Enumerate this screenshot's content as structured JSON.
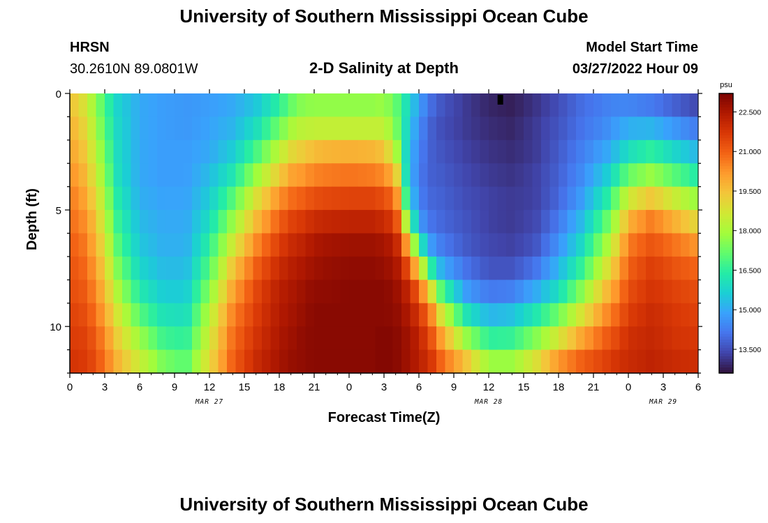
{
  "header": {
    "title": "University of Southern Mississippi Ocean Cube",
    "station": "HRSN",
    "coordinates": "30.2610N  89.0801W",
    "plot_title": "2-D Salinity at Depth",
    "model_start_label": "Model Start Time",
    "model_start_value": "03/27/2022 Hour 09"
  },
  "footer": {
    "title": "University of Southern Mississippi Ocean Cube"
  },
  "chart_data": {
    "type": "heatmap",
    "title": "2-D Salinity at Depth",
    "xlabel": "Forecast Time(Z)",
    "ylabel": "Depth (ft)",
    "x_hours_range": [
      0,
      54
    ],
    "x_tick_hours": [
      0,
      3,
      6,
      9,
      12,
      15,
      18,
      21,
      24,
      27,
      30,
      33,
      36,
      39,
      42,
      45,
      48,
      51,
      54
    ],
    "x_tick_labels": [
      "0",
      "3",
      "6",
      "9",
      "12",
      "15",
      "18",
      "21",
      "0",
      "3",
      "6",
      "9",
      "12",
      "15",
      "18",
      "21",
      "0",
      "3",
      "6"
    ],
    "date_labels": [
      {
        "hour": 12,
        "label": "MAR 27"
      },
      {
        "hour": 36,
        "label": "MAR 28"
      },
      {
        "hour": 51,
        "label": "MAR 29"
      }
    ],
    "y_range": [
      0,
      12
    ],
    "y_ticks": [
      0,
      5,
      10
    ],
    "colorbar": {
      "unit": "psu",
      "range": [
        12.6,
        23.2
      ],
      "ticks": [
        13.5,
        15.0,
        16.5,
        18.0,
        19.5,
        21.0,
        22.5
      ],
      "tick_labels": [
        "13.500",
        "15.000",
        "16.500",
        "18.000",
        "19.500",
        "21.000",
        "22.500"
      ],
      "colors": [
        "#30123b",
        "#4145ab",
        "#4675ed",
        "#39a2fc",
        "#1bcfd4",
        "#24eca6",
        "#61fc6c",
        "#a4fc3b",
        "#d1e834",
        "#f3c63a",
        "#fe9b2d",
        "#f36315",
        "#d93806",
        "#b11901",
        "#7a0402"
      ]
    },
    "marker": {
      "hour": 37,
      "depth": 0.3
    },
    "depth_levels_ft": [
      0.5,
      1.5,
      2.5,
      3.5,
      4.5,
      5.5,
      6.5,
      7.5,
      8.5,
      9.5,
      10.5,
      11.5
    ],
    "profile_hours": [
      0,
      1,
      2,
      3,
      4,
      6,
      8,
      10,
      12,
      14,
      16,
      18,
      19,
      20,
      21,
      22,
      24,
      26,
      27,
      28,
      29,
      30,
      31,
      32,
      34,
      36,
      38,
      40,
      42,
      44,
      46,
      47,
      48,
      50,
      52,
      54
    ],
    "profiles_psu": [
      [
        19.5,
        19.8,
        20.0,
        20.3,
        20.6,
        20.8,
        21.0,
        21.2,
        21.3,
        21.5,
        21.6,
        21.8
      ],
      [
        19.0,
        19.3,
        19.6,
        19.9,
        20.2,
        20.5,
        20.8,
        21.0,
        21.2,
        21.4,
        21.6,
        21.7
      ],
      [
        18.0,
        18.3,
        18.6,
        18.9,
        19.3,
        19.7,
        20.0,
        20.3,
        20.6,
        20.9,
        21.2,
        21.4
      ],
      [
        16.8,
        17.0,
        17.3,
        17.6,
        18.0,
        18.4,
        18.8,
        19.2,
        19.6,
        20.0,
        20.4,
        20.7
      ],
      [
        15.8,
        15.9,
        16.0,
        16.1,
        16.4,
        16.7,
        17.1,
        17.6,
        18.2,
        18.8,
        19.3,
        19.8
      ],
      [
        15.0,
        15.0,
        15.0,
        15.0,
        15.1,
        15.3,
        15.5,
        15.8,
        16.3,
        17.0,
        17.8,
        18.5
      ],
      [
        14.8,
        14.8,
        14.8,
        14.8,
        14.9,
        15.0,
        15.1,
        15.3,
        15.6,
        16.1,
        16.7,
        17.4
      ],
      [
        14.7,
        14.7,
        14.8,
        14.8,
        14.9,
        15.0,
        15.1,
        15.3,
        15.6,
        16.0,
        16.5,
        17.0
      ],
      [
        14.8,
        14.9,
        15.0,
        15.3,
        15.6,
        16.0,
        16.5,
        17.0,
        17.6,
        18.2,
        18.6,
        19.0
      ],
      [
        15.0,
        15.2,
        15.6,
        16.2,
        17.0,
        17.8,
        18.6,
        19.4,
        20.0,
        20.5,
        20.8,
        21.0
      ],
      [
        15.5,
        16.0,
        16.8,
        17.8,
        18.8,
        19.6,
        20.4,
        21.0,
        21.4,
        21.6,
        21.8,
        22.0
      ],
      [
        16.5,
        17.3,
        18.3,
        19.3,
        20.3,
        21.0,
        21.6,
        22.0,
        22.3,
        22.4,
        22.5,
        22.6
      ],
      [
        17.2,
        18.0,
        19.0,
        20.0,
        20.8,
        21.5,
        22.0,
        22.3,
        22.5,
        22.6,
        22.7,
        22.8
      ],
      [
        17.6,
        18.3,
        19.3,
        20.2,
        21.0,
        21.7,
        22.2,
        22.5,
        22.7,
        22.8,
        22.9,
        22.9
      ],
      [
        17.7,
        18.4,
        19.6,
        20.5,
        21.3,
        22.0,
        22.5,
        22.7,
        22.9,
        23.0,
        23.0,
        23.0
      ],
      [
        17.7,
        18.4,
        19.7,
        20.6,
        21.4,
        22.1,
        22.6,
        22.8,
        22.9,
        23.0,
        23.0,
        23.0
      ],
      [
        17.7,
        18.4,
        19.8,
        20.7,
        21.5,
        22.2,
        22.7,
        22.9,
        23.0,
        23.0,
        23.0,
        23.0
      ],
      [
        17.7,
        18.4,
        19.7,
        20.6,
        21.5,
        22.2,
        22.7,
        22.9,
        23.0,
        23.0,
        23.0,
        23.0
      ],
      [
        17.8,
        18.4,
        19.5,
        20.4,
        21.3,
        22.0,
        22.6,
        22.8,
        23.0,
        23.0,
        23.1,
        23.1
      ],
      [
        17.2,
        17.5,
        18.2,
        19.6,
        20.8,
        21.6,
        22.3,
        22.6,
        22.8,
        22.9,
        23.0,
        23.0
      ],
      [
        16.0,
        15.8,
        15.6,
        15.6,
        16.2,
        17.8,
        20.0,
        21.4,
        22.2,
        22.5,
        22.7,
        22.7
      ],
      [
        14.8,
        14.5,
        14.3,
        14.2,
        14.3,
        14.8,
        16.5,
        19.2,
        21.0,
        21.8,
        22.2,
        22.3
      ],
      [
        14.0,
        13.8,
        13.8,
        13.8,
        13.9,
        14.1,
        14.8,
        16.5,
        19.0,
        20.6,
        21.3,
        21.8
      ],
      [
        13.6,
        13.5,
        13.6,
        13.7,
        13.8,
        13.9,
        14.2,
        15.0,
        16.8,
        18.6,
        20.0,
        20.8
      ],
      [
        13.2,
        13.2,
        13.3,
        13.4,
        13.5,
        13.6,
        13.7,
        14.1,
        14.8,
        16.2,
        17.8,
        19.5
      ],
      [
        12.9,
        13.0,
        13.1,
        13.2,
        13.3,
        13.3,
        13.4,
        13.6,
        14.2,
        15.2,
        16.5,
        17.8
      ],
      [
        12.8,
        12.9,
        13.0,
        13.1,
        13.2,
        13.2,
        13.3,
        13.6,
        14.3,
        15.4,
        16.6,
        17.8
      ],
      [
        13.1,
        13.2,
        13.2,
        13.3,
        13.3,
        13.4,
        13.6,
        14.1,
        15.0,
        16.2,
        17.5,
        18.8
      ],
      [
        13.5,
        13.6,
        13.7,
        13.8,
        13.9,
        14.2,
        14.6,
        15.2,
        16.0,
        17.3,
        18.7,
        20.2
      ],
      [
        14.0,
        14.1,
        14.3,
        14.5,
        14.8,
        15.3,
        15.9,
        16.6,
        17.6,
        18.8,
        20.0,
        21.0
      ],
      [
        14.3,
        14.5,
        14.9,
        15.5,
        16.2,
        17.0,
        17.8,
        18.6,
        19.5,
        20.3,
        21.0,
        21.5
      ],
      [
        14.4,
        14.8,
        15.4,
        16.3,
        17.3,
        18.2,
        19.0,
        19.7,
        20.3,
        20.9,
        21.4,
        21.8
      ],
      [
        14.4,
        15.1,
        16.0,
        17.2,
        18.6,
        19.8,
        20.6,
        21.0,
        21.3,
        21.6,
        21.9,
        22.0
      ],
      [
        14.2,
        15.2,
        16.5,
        17.8,
        19.4,
        20.6,
        21.2,
        21.6,
        21.8,
        22.0,
        22.1,
        22.2
      ],
      [
        13.8,
        14.7,
        15.8,
        17.0,
        18.5,
        19.8,
        20.7,
        21.2,
        21.5,
        21.7,
        21.8,
        22.0
      ],
      [
        13.4,
        14.2,
        15.2,
        16.3,
        17.7,
        19.0,
        20.2,
        20.9,
        21.3,
        21.5,
        21.7,
        21.9
      ]
    ]
  }
}
